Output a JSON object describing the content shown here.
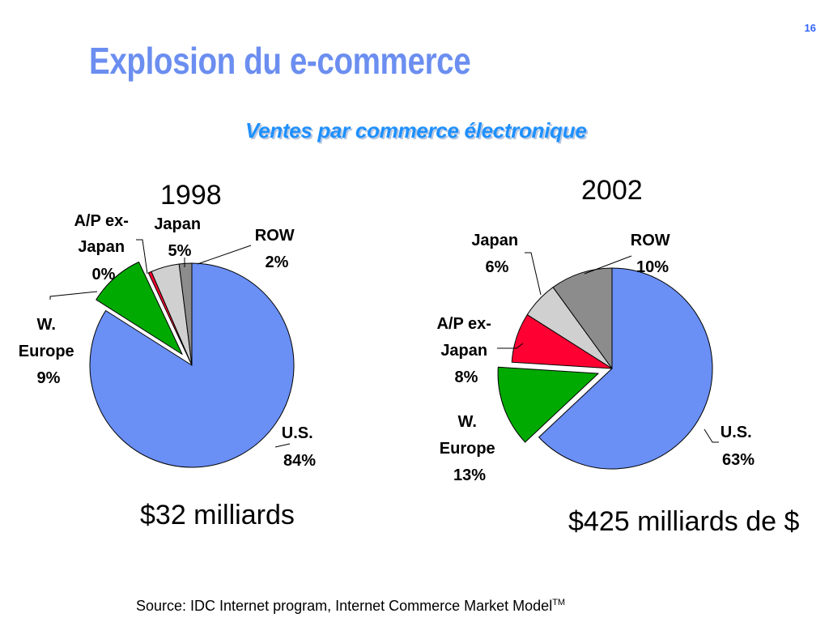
{
  "slide": {
    "number": "16",
    "title": "Explosion du e-commerce",
    "subtitle": "Ventes par commerce électronique",
    "source": "Source: IDC Internet program, Internet Commerce Market Model",
    "source_mark": "TM"
  },
  "colors": {
    "title": "#6b8ef0",
    "subtitle": "#1e90ff",
    "us": "#6a8ff5",
    "w_europe": "#00aa00",
    "ap_ex_japan": "#ff0033",
    "japan": "#d0d0d0",
    "row": "#8c8c8c"
  },
  "chart_data": [
    {
      "type": "pie",
      "title": "1998",
      "total_label": "$32 milliards",
      "slices": [
        {
          "name": "U.S.",
          "value": 84,
          "pct_label": "84%",
          "color": "#6a8ff5",
          "exploded": false
        },
        {
          "name": "W. Europe",
          "value": 9,
          "pct_label": "9%",
          "color": "#00aa00",
          "exploded": true
        },
        {
          "name": "A/P ex-Japan",
          "value": 0.5,
          "pct_label": "0%",
          "color": "#ff0033",
          "exploded": false
        },
        {
          "name": "Japan",
          "value": 4.5,
          "pct_label": "5%",
          "color": "#d0d0d0",
          "exploded": false
        },
        {
          "name": "ROW",
          "value": 2,
          "pct_label": "2%",
          "color": "#8c8c8c",
          "exploded": false
        }
      ]
    },
    {
      "type": "pie",
      "title": "2002",
      "total_label": "$425 milliards de $",
      "slices": [
        {
          "name": "U.S.",
          "value": 63,
          "pct_label": "63%",
          "color": "#6a8ff5",
          "exploded": false
        },
        {
          "name": "W. Europe",
          "value": 13,
          "pct_label": "13%",
          "color": "#00aa00",
          "exploded": true
        },
        {
          "name": "A/P ex-Japan",
          "value": 8,
          "pct_label": "8%",
          "color": "#ff0033",
          "exploded": false
        },
        {
          "name": "Japan",
          "value": 6,
          "pct_label": "6%",
          "color": "#d0d0d0",
          "exploded": false
        },
        {
          "name": "ROW",
          "value": 10,
          "pct_label": "10%",
          "color": "#8c8c8c",
          "exploded": false
        }
      ]
    }
  ],
  "labels": {
    "chart1": {
      "us": [
        "U.S.",
        "84%"
      ],
      "w_europe": [
        "W.",
        "Europe",
        "9%"
      ],
      "ap_ex_japan": [
        "A/P ex-",
        "Japan",
        "0%"
      ],
      "japan": [
        "Japan",
        "5%"
      ],
      "row": [
        "ROW",
        "2%"
      ]
    },
    "chart2": {
      "us": [
        "U.S.",
        "63%"
      ],
      "w_europe": [
        "W.",
        "Europe",
        "13%"
      ],
      "ap_ex_japan": [
        "A/P ex-",
        "Japan",
        "8%"
      ],
      "japan": [
        "Japan",
        "6%"
      ],
      "row": [
        "ROW",
        "10%"
      ]
    }
  }
}
